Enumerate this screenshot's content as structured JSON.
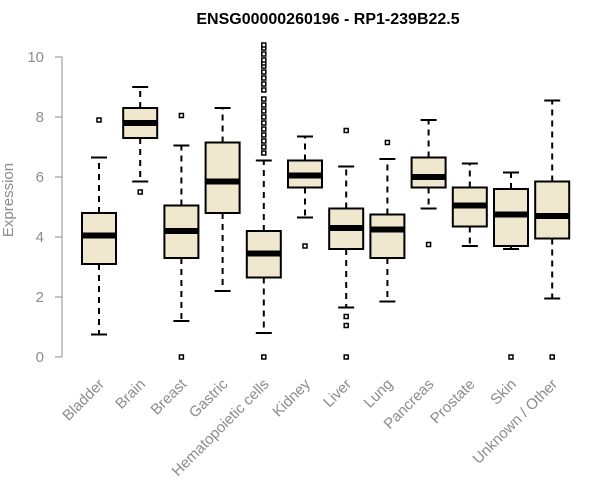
{
  "chart_data": {
    "type": "boxplot",
    "title": "ENSG00000260196 - RP1-239B22.5",
    "xlabel": "",
    "ylabel": "Expression",
    "ylim": [
      0,
      10.4
    ],
    "yticks": [
      0,
      2,
      4,
      6,
      8,
      10
    ],
    "grid": false,
    "box_color": "#efe8cf",
    "categories": [
      "Bladder",
      "Brain",
      "Breast",
      "Gastric",
      "Hematopoietic cells",
      "Kidney",
      "Liver",
      "Lung",
      "Pancreas",
      "Prostate",
      "Skin",
      "Unknown / Other"
    ],
    "boxes": [
      {
        "name": "Bladder",
        "whisker_low": 0.75,
        "q1": 3.1,
        "median": 4.05,
        "q3": 4.8,
        "whisker_high": 6.65,
        "outliers": [
          7.9
        ]
      },
      {
        "name": "Brain",
        "whisker_low": 5.85,
        "q1": 7.3,
        "median": 7.8,
        "q3": 8.3,
        "whisker_high": 9.0,
        "outliers": [
          5.5
        ]
      },
      {
        "name": "Breast",
        "whisker_low": 1.2,
        "q1": 3.3,
        "median": 4.2,
        "q3": 5.05,
        "whisker_high": 7.05,
        "outliers": [
          8.05,
          0.0
        ]
      },
      {
        "name": "Gastric",
        "whisker_low": 2.2,
        "q1": 4.8,
        "median": 5.85,
        "q3": 7.15,
        "whisker_high": 8.3,
        "outliers": []
      },
      {
        "name": "Hematopoietic cells",
        "whisker_low": 0.8,
        "q1": 2.65,
        "median": 3.45,
        "q3": 4.2,
        "whisker_high": 6.55,
        "outliers": [
          0.0,
          6.8,
          7.0,
          7.2,
          7.4,
          7.6,
          7.8,
          8.0,
          8.2,
          8.4,
          8.6,
          8.9,
          9.1,
          9.3,
          9.5,
          9.7,
          9.8,
          9.9,
          10.1,
          10.3,
          10.4
        ]
      },
      {
        "name": "Kidney",
        "whisker_low": 4.65,
        "q1": 5.65,
        "median": 6.05,
        "q3": 6.55,
        "whisker_high": 7.35,
        "outliers": [
          3.7
        ]
      },
      {
        "name": "Liver",
        "whisker_low": 1.65,
        "q1": 3.6,
        "median": 4.3,
        "q3": 4.95,
        "whisker_high": 6.35,
        "outliers": [
          7.55,
          1.35,
          1.05,
          0.0
        ]
      },
      {
        "name": "Lung",
        "whisker_low": 1.85,
        "q1": 3.3,
        "median": 4.25,
        "q3": 4.75,
        "whisker_high": 6.6,
        "outliers": [
          7.15
        ]
      },
      {
        "name": "Pancreas",
        "whisker_low": 4.95,
        "q1": 5.65,
        "median": 6.0,
        "q3": 6.65,
        "whisker_high": 7.9,
        "outliers": [
          3.75
        ]
      },
      {
        "name": "Prostate",
        "whisker_low": 3.7,
        "q1": 4.35,
        "median": 5.05,
        "q3": 5.65,
        "whisker_high": 6.45,
        "outliers": []
      },
      {
        "name": "Skin",
        "whisker_low": 3.6,
        "q1": 3.7,
        "median": 4.75,
        "q3": 5.6,
        "whisker_high": 6.15,
        "outliers": [
          0.0
        ]
      },
      {
        "name": "Unknown / Other",
        "whisker_low": 1.95,
        "q1": 3.95,
        "median": 4.7,
        "q3": 5.85,
        "whisker_high": 8.55,
        "outliers": [
          0.0
        ]
      }
    ]
  }
}
